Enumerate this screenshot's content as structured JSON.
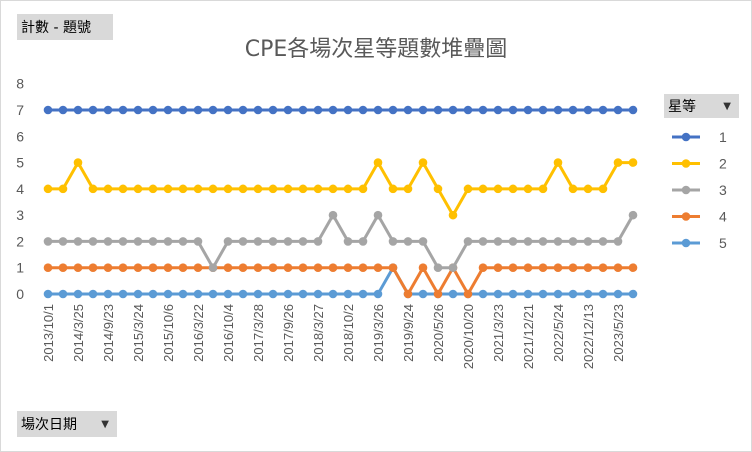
{
  "filter": {
    "values_field": "計數 - 題號"
  },
  "axis_field": {
    "label": "場次日期",
    "dropdown_icon": "dropdown-arrow-icon"
  },
  "legend_field": {
    "label": "星等",
    "dropdown_icon": "dropdown-arrow-icon"
  },
  "chart_data": {
    "type": "line",
    "title": "CPE各場次星等題數堆疊圖",
    "xlabel": "",
    "ylabel": "",
    "ylim": [
      0,
      8
    ],
    "yticks": [
      "0",
      "1",
      "2",
      "3",
      "4",
      "5",
      "6",
      "7",
      "8"
    ],
    "grid": false,
    "legend_position": "right",
    "categories": [
      "2013/10/1",
      "",
      "2014/3/25",
      "",
      "2014/9/23",
      "",
      "2015/3/24",
      "",
      "2015/10/6",
      "",
      "2016/3/22",
      "",
      "2016/10/4",
      "",
      "2017/3/28",
      "",
      "2017/9/26",
      "",
      "2018/3/27",
      "",
      "2018/10/2",
      "",
      "2019/3/26",
      "",
      "2019/9/24",
      "",
      "2020/5/26",
      "",
      "2020/10/20",
      "",
      "2021/3/23",
      "",
      "2021/12/21",
      "",
      "2022/5/24",
      "",
      "2022/12/13",
      "",
      "2023/5/23",
      ""
    ],
    "series": [
      {
        "name": "1",
        "color": "#4472c4",
        "values": [
          7,
          7,
          7,
          7,
          7,
          7,
          7,
          7,
          7,
          7,
          7,
          7,
          7,
          7,
          7,
          7,
          7,
          7,
          7,
          7,
          7,
          7,
          7,
          7,
          7,
          7,
          7,
          7,
          7,
          7,
          7,
          7,
          7,
          7,
          7,
          7,
          7,
          7,
          7,
          7
        ]
      },
      {
        "name": "2",
        "color": "#ffc000",
        "values": [
          4,
          4,
          5,
          4,
          4,
          4,
          4,
          4,
          4,
          4,
          4,
          4,
          4,
          4,
          4,
          4,
          4,
          4,
          4,
          4,
          4,
          4,
          5,
          4,
          4,
          5,
          4,
          3,
          4,
          4,
          4,
          4,
          4,
          4,
          5,
          4,
          4,
          4,
          5,
          5
        ]
      },
      {
        "name": "3",
        "color": "#a5a5a5",
        "values": [
          2,
          2,
          2,
          2,
          2,
          2,
          2,
          2,
          2,
          2,
          2,
          1,
          2,
          2,
          2,
          2,
          2,
          2,
          2,
          3,
          2,
          2,
          3,
          2,
          2,
          2,
          1,
          1,
          2,
          2,
          2,
          2,
          2,
          2,
          2,
          2,
          2,
          2,
          2,
          3
        ]
      },
      {
        "name": "4",
        "color": "#ed7d31",
        "values": [
          1,
          1,
          1,
          1,
          1,
          1,
          1,
          1,
          1,
          1,
          1,
          1,
          1,
          1,
          1,
          1,
          1,
          1,
          1,
          1,
          1,
          1,
          1,
          1,
          0,
          1,
          0,
          1,
          0,
          1,
          1,
          1,
          1,
          1,
          1,
          1,
          1,
          1,
          1,
          1
        ]
      },
      {
        "name": "5",
        "color": "#5b9bd5",
        "values": [
          0,
          0,
          0,
          0,
          0,
          0,
          0,
          0,
          0,
          0,
          0,
          0,
          0,
          0,
          0,
          0,
          0,
          0,
          0,
          0,
          0,
          0,
          0,
          1,
          0,
          0,
          0,
          0,
          0,
          0,
          0,
          0,
          0,
          0,
          0,
          0,
          0,
          0,
          0,
          0
        ]
      }
    ]
  }
}
